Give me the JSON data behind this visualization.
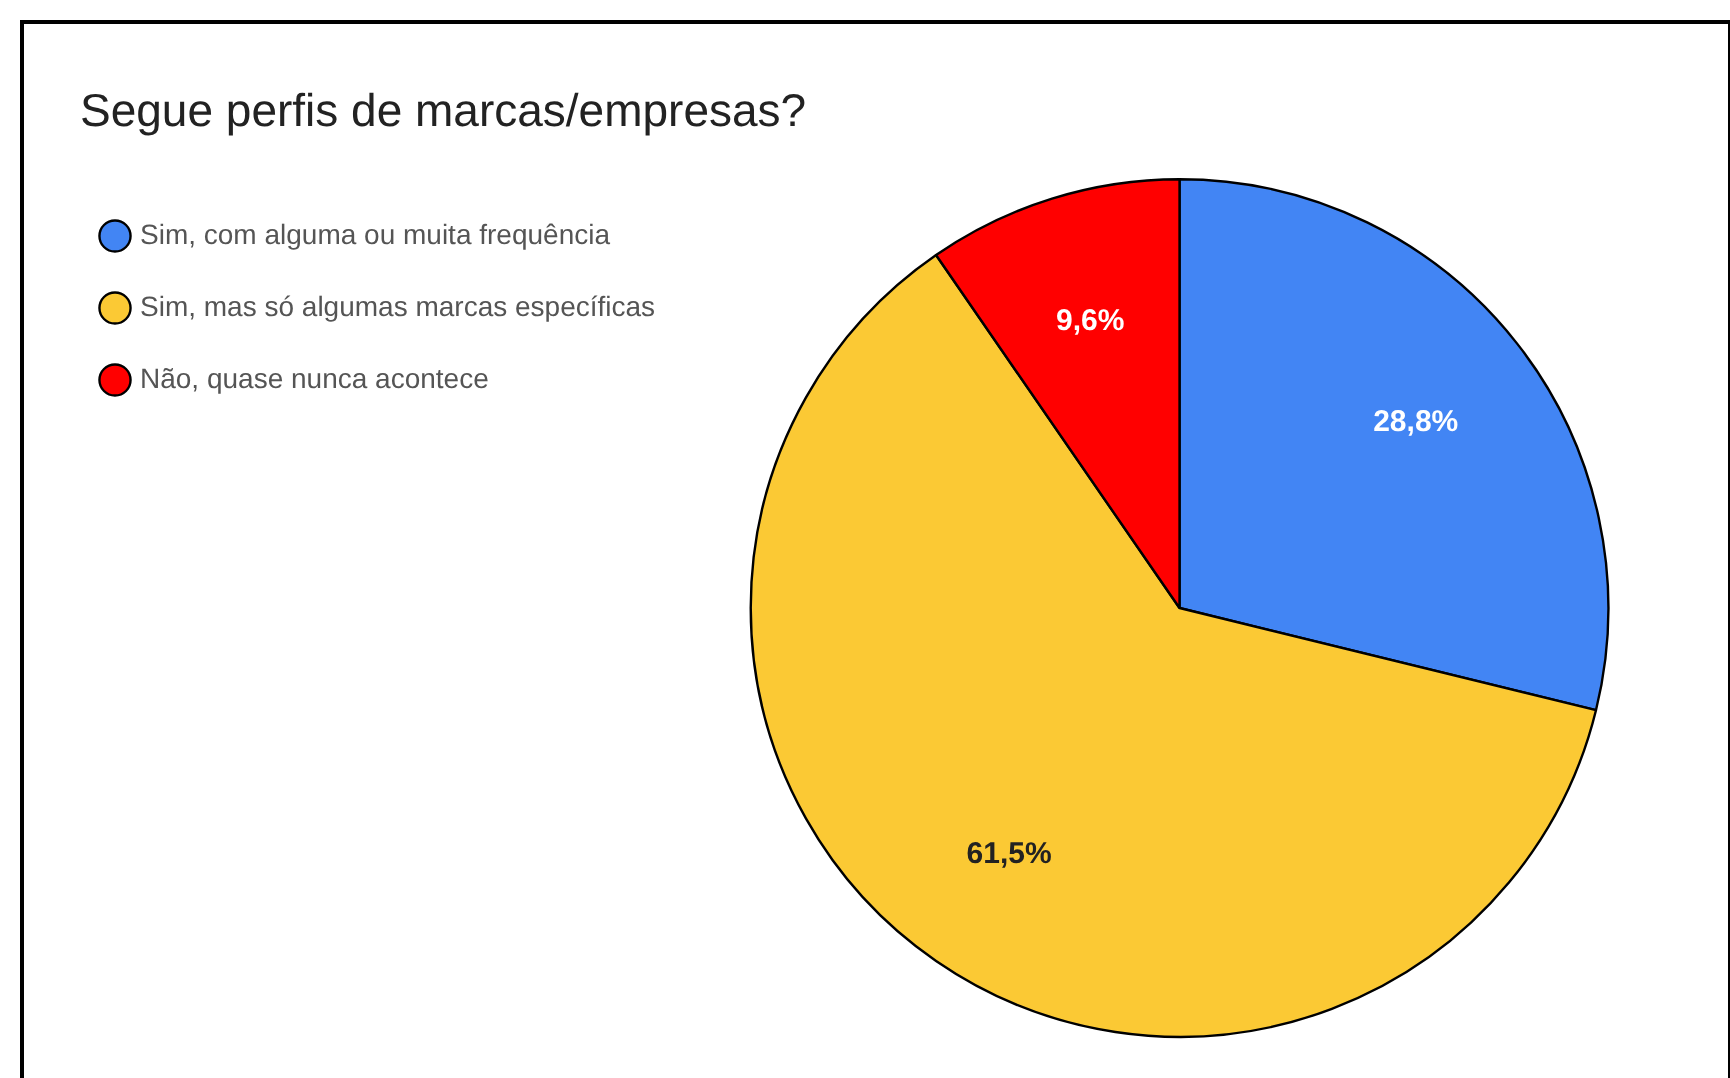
{
  "chart_data": {
    "type": "pie",
    "title": "Segue perfis de marcas/empresas?",
    "categories": [
      "Sim, com alguma ou muita frequência",
      "Sim, mas só algumas marcas específicas",
      "Não, quase nunca acontece"
    ],
    "values": [
      28.8,
      61.5,
      9.6
    ],
    "colors": [
      "#4285f4",
      "#fbc934",
      "#ff0000"
    ],
    "value_labels": [
      "28,8%",
      "61,5%",
      "9,6%"
    ],
    "legend": "top left"
  }
}
